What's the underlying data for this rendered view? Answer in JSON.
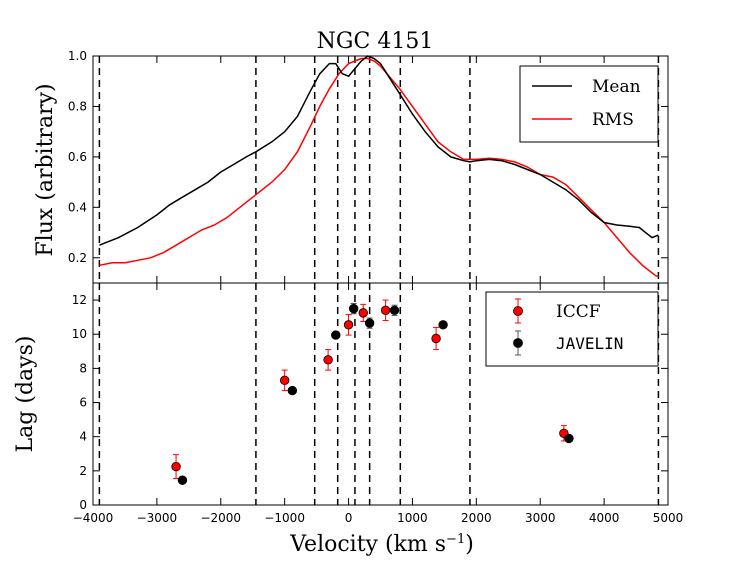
{
  "chart_data": [
    {
      "type": "line",
      "title": "NGC 4151",
      "xlabel": "Velocity",
      "xlabel_unit": "(km s",
      "xlabel_unit_exp": "−1",
      "xlabel_unit_close": ")",
      "ylabel": "Flux (arbitrary)",
      "xlim": [
        -4000,
        5000
      ],
      "ylim": [
        0.1,
        1.0
      ],
      "xticks": [
        -4000,
        -3000,
        -2000,
        -1000,
        0,
        1000,
        2000,
        3000,
        4000,
        5000
      ],
      "xtick_labels": [
        "−4000",
        "−3000",
        "−2000",
        "−1000",
        "0",
        "1000",
        "2000",
        "3000",
        "4000",
        "5000"
      ],
      "yticks": [
        0.2,
        0.4,
        0.6,
        0.8,
        1.0
      ],
      "ytick_labels": [
        "0.2",
        "0.4",
        "0.6",
        "0.8",
        "1.0"
      ],
      "legend_position": "top-right",
      "vertical_lines": [
        -3900,
        -1450,
        -530,
        -170,
        100,
        330,
        810,
        1900,
        4850
      ],
      "series": [
        {
          "name": "Mean",
          "color": "#000000",
          "x": [
            -3900,
            -3600,
            -3300,
            -3000,
            -2800,
            -2600,
            -2400,
            -2200,
            -2000,
            -1800,
            -1600,
            -1450,
            -1200,
            -1000,
            -800,
            -600,
            -450,
            -300,
            -200,
            -100,
            0,
            100,
            200,
            300,
            400,
            500,
            600,
            800,
            1000,
            1200,
            1400,
            1600,
            1800,
            1900,
            2000,
            2200,
            2400,
            2600,
            2800,
            3000,
            3200,
            3400,
            3600,
            3800,
            4000,
            4200,
            4400,
            4550,
            4650,
            4750,
            4850
          ],
          "values": [
            0.25,
            0.28,
            0.32,
            0.37,
            0.41,
            0.44,
            0.47,
            0.5,
            0.54,
            0.57,
            0.6,
            0.62,
            0.66,
            0.7,
            0.76,
            0.86,
            0.93,
            0.97,
            0.97,
            0.93,
            0.92,
            0.95,
            0.98,
            1.0,
            0.99,
            0.97,
            0.93,
            0.85,
            0.77,
            0.7,
            0.64,
            0.6,
            0.585,
            0.58,
            0.585,
            0.59,
            0.585,
            0.57,
            0.55,
            0.53,
            0.5,
            0.47,
            0.43,
            0.38,
            0.34,
            0.33,
            0.325,
            0.32,
            0.3,
            0.28,
            0.29
          ]
        },
        {
          "name": "RMS",
          "color": "#ff0000",
          "x": [
            -3900,
            -3700,
            -3500,
            -3300,
            -3100,
            -2900,
            -2700,
            -2500,
            -2300,
            -2100,
            -1900,
            -1700,
            -1450,
            -1200,
            -1000,
            -800,
            -600,
            -450,
            -300,
            -150,
            0,
            100,
            200,
            300,
            400,
            500,
            600,
            700,
            800,
            1000,
            1200,
            1400,
            1600,
            1800,
            2000,
            2200,
            2400,
            2600,
            2800,
            3000,
            3200,
            3400,
            3600,
            3800,
            4000,
            4200,
            4400,
            4600,
            4800,
            4850
          ],
          "values": [
            0.17,
            0.18,
            0.18,
            0.19,
            0.2,
            0.22,
            0.25,
            0.28,
            0.31,
            0.33,
            0.36,
            0.4,
            0.45,
            0.5,
            0.55,
            0.62,
            0.72,
            0.8,
            0.87,
            0.93,
            0.97,
            0.98,
            0.99,
            0.99,
            0.98,
            0.96,
            0.93,
            0.9,
            0.87,
            0.8,
            0.73,
            0.66,
            0.62,
            0.59,
            0.59,
            0.595,
            0.59,
            0.58,
            0.56,
            0.53,
            0.52,
            0.49,
            0.44,
            0.39,
            0.34,
            0.28,
            0.22,
            0.17,
            0.13,
            0.125
          ]
        }
      ]
    },
    {
      "type": "scatter",
      "xlabel": "Velocity (km s−1)",
      "ylabel": "Lag (days)",
      "xlim": [
        -4000,
        5000
      ],
      "ylim": [
        0,
        13
      ],
      "xticks": [
        -4000,
        -3000,
        -2000,
        -1000,
        0,
        1000,
        2000,
        3000,
        4000,
        5000
      ],
      "yticks": [
        0,
        2,
        4,
        6,
        8,
        10,
        12
      ],
      "ytick_labels": [
        "0",
        "2",
        "4",
        "6",
        "8",
        "10",
        "12"
      ],
      "legend_position": "top-right",
      "vertical_lines": [
        -3900,
        -1450,
        -530,
        -170,
        100,
        330,
        810,
        1900,
        4850
      ],
      "series": [
        {
          "name": "ICCF",
          "color": "#ff0000",
          "errcolor": "#ff0000",
          "x": [
            -2700,
            -1000,
            -320,
            0,
            230,
            580,
            1370,
            3370
          ],
          "values": [
            2.25,
            7.3,
            8.5,
            10.55,
            11.25,
            11.4,
            9.75,
            4.2
          ],
          "err": [
            0.7,
            0.6,
            0.6,
            0.6,
            0.5,
            0.6,
            0.65,
            0.45
          ]
        },
        {
          "name": "JAVELIN",
          "color": "#000000",
          "errcolor": "#555555",
          "x": [
            -2600,
            -880,
            -200,
            80,
            330,
            720,
            1480,
            3450
          ],
          "values": [
            1.45,
            6.7,
            9.95,
            11.5,
            10.65,
            11.4,
            10.55,
            3.9
          ],
          "err": [
            0.12,
            0.15,
            0.1,
            0.3,
            0.3,
            0.3,
            0.15,
            0.1
          ]
        }
      ]
    }
  ]
}
